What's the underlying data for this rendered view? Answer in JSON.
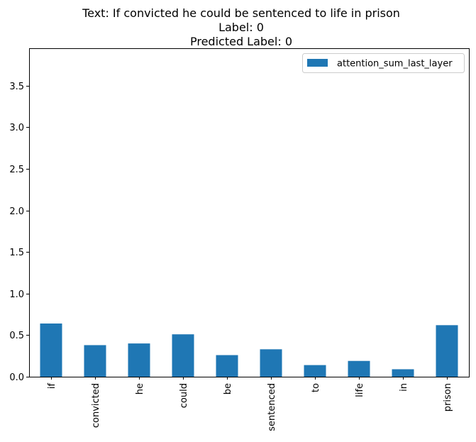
{
  "chart_data": {
    "type": "bar",
    "title_lines": [
      "Text: If convicted he could be sentenced to life in prison",
      "Label: 0",
      "Predicted Label: 0"
    ],
    "categories": [
      "if",
      "convicted",
      "he",
      "could",
      "be",
      "sentenced",
      "to",
      "life",
      "in",
      "prison"
    ],
    "series": [
      {
        "name": "attention_sum_last_layer",
        "color": "#1f77b4",
        "values": [
          0.64,
          0.38,
          0.4,
          0.51,
          0.26,
          0.33,
          0.14,
          0.19,
          0.09,
          0.62
        ]
      }
    ],
    "yticks": [
      0.0,
      0.5,
      1.0,
      1.5,
      2.0,
      2.5,
      3.0,
      3.5
    ],
    "ytick_labels": [
      "0.0",
      "0.5",
      "1.0",
      "1.5",
      "2.0",
      "2.5",
      "3.0",
      "3.5"
    ],
    "ylim": [
      0,
      3.95
    ],
    "grid": false,
    "legend_position": "top-right"
  }
}
